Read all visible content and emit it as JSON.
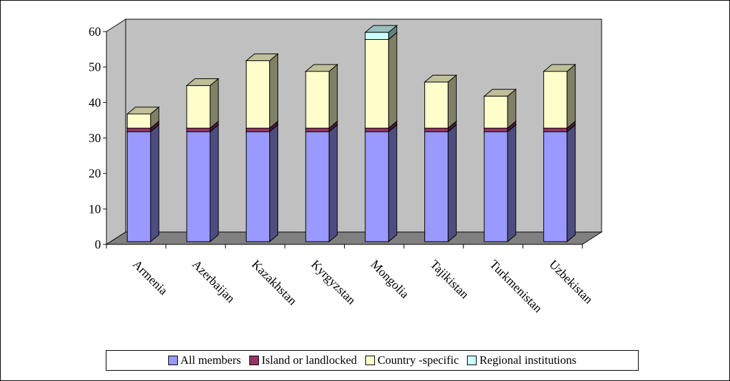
{
  "chart_data": {
    "type": "bar",
    "stacked": true,
    "style": "3d",
    "categories": [
      "Armenia",
      "Azerbaijan",
      "Kazakhstan",
      "Kyrgyzstan",
      "Mongolia",
      "Tajikistan",
      "Turkmenistan",
      "Uzbekistan"
    ],
    "series": [
      {
        "name": "All members",
        "color": "#9999ff",
        "values": [
          31,
          31,
          31,
          31,
          31,
          31,
          31,
          31
        ]
      },
      {
        "name": "Island or landlocked",
        "color": "#993366",
        "values": [
          1,
          1,
          1,
          1,
          1,
          1,
          1,
          1
        ]
      },
      {
        "name": "Country -specific",
        "color": "#ffffcc",
        "values": [
          4,
          12,
          19,
          16,
          25,
          13,
          9,
          16
        ]
      },
      {
        "name": "Regional institutions",
        "color": "#ccffff",
        "values": [
          0,
          0,
          0,
          0,
          2,
          0,
          0,
          0
        ]
      }
    ],
    "ylim": [
      0,
      60
    ],
    "yticks": [
      "0",
      "10",
      "20",
      "30",
      "40",
      "50",
      "60"
    ],
    "title": "",
    "xlabel": "",
    "ylabel": "",
    "legend_position": "bottom",
    "wall_color": "#c0c0c0",
    "floor_color": "#808080"
  }
}
